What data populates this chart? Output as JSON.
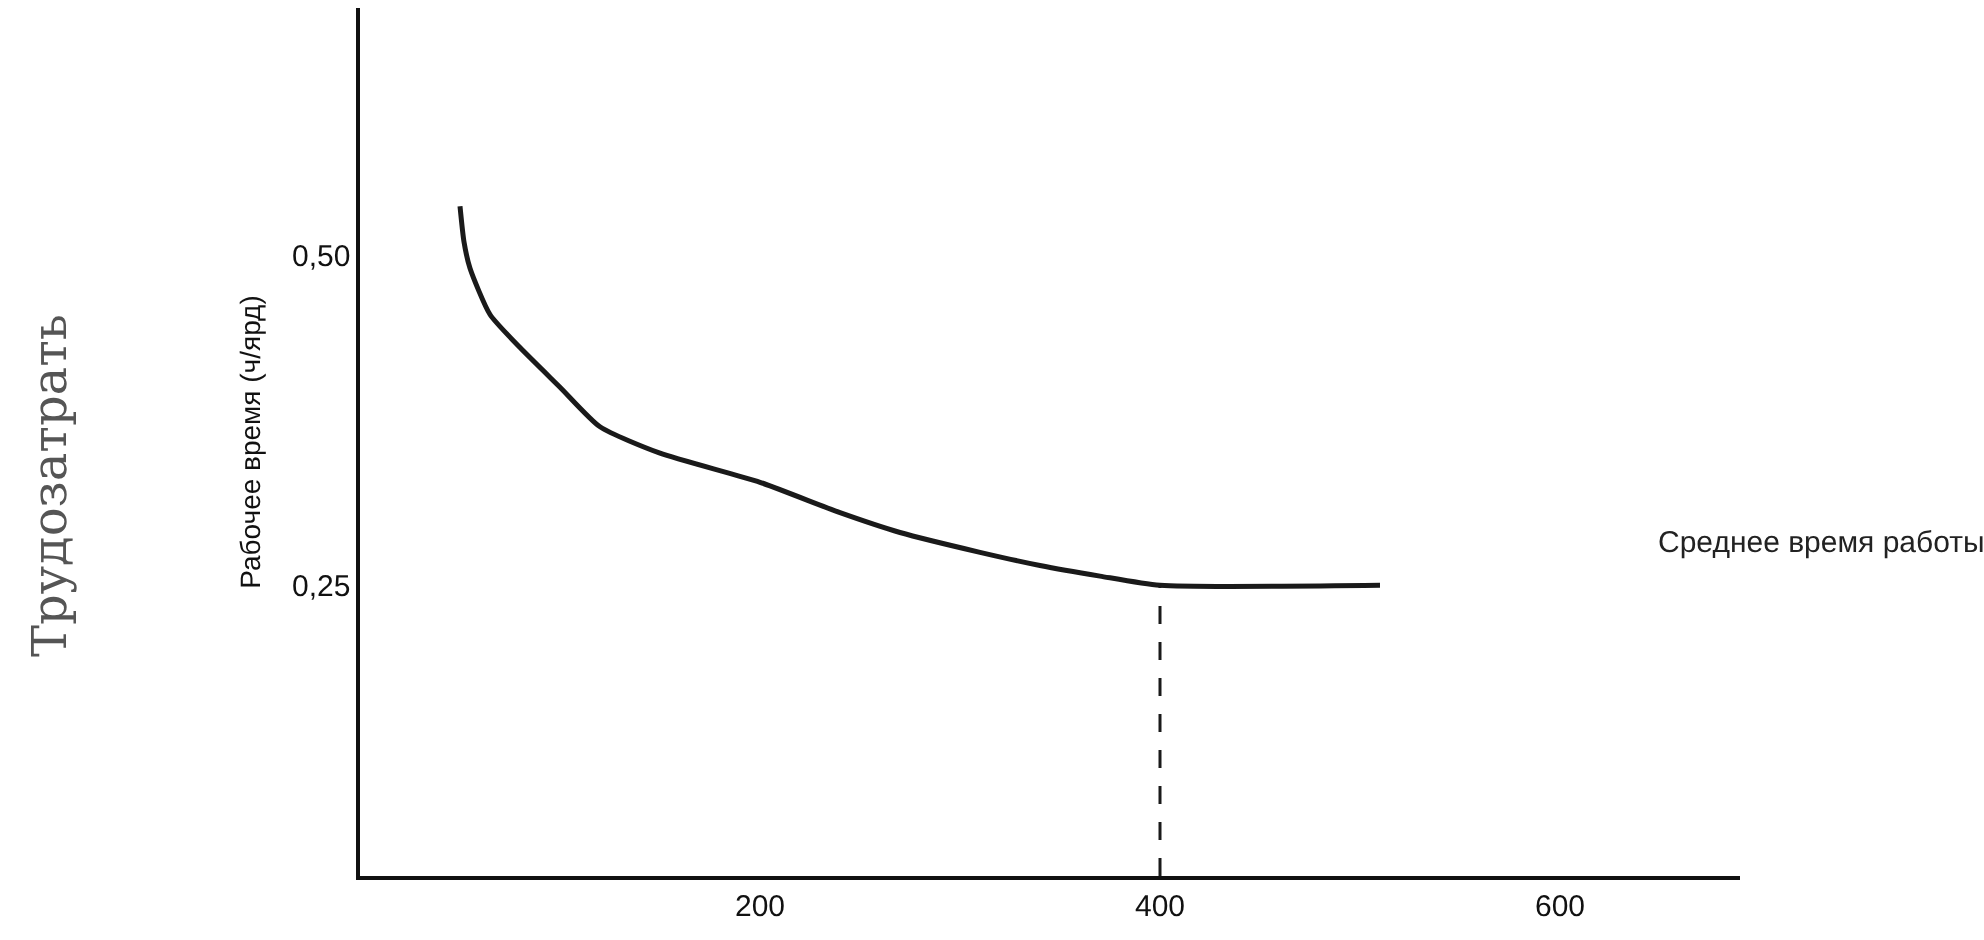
{
  "chart_data": {
    "type": "line",
    "ylabel": "Рабочее время (ч/ярд)",
    "series": [
      {
        "color": "#1a1a1a",
        "x": [
          50,
          52,
          55,
          65,
          80,
          100,
          120,
          150,
          200,
          240,
          270,
          310,
          340,
          370,
          400,
          510
        ],
        "values": [
          0.537,
          0.51,
          0.49,
          0.455,
          0.43,
          0.4,
          0.37,
          0.35,
          0.328,
          0.305,
          0.29,
          0.275,
          0.265,
          0.257,
          0.25,
          0.25
        ]
      }
    ],
    "xlim": [
      0,
      690
    ],
    "ylim": [
      0.03,
      0.687
    ],
    "xticks": [
      200,
      400,
      600
    ],
    "yticks": [
      {
        "value": 0.5,
        "label": "0,50"
      },
      {
        "value": 0.25,
        "label": "0,25"
      }
    ],
    "ref_lines": [
      {
        "axis": "x",
        "value": 400,
        "line_style": "dashed",
        "color": "#1a1a1a"
      }
    ],
    "annotations": [
      "Трудозатрать",
      "Среднее время работы"
    ],
    "marker": "none",
    "line_style": "solid"
  }
}
